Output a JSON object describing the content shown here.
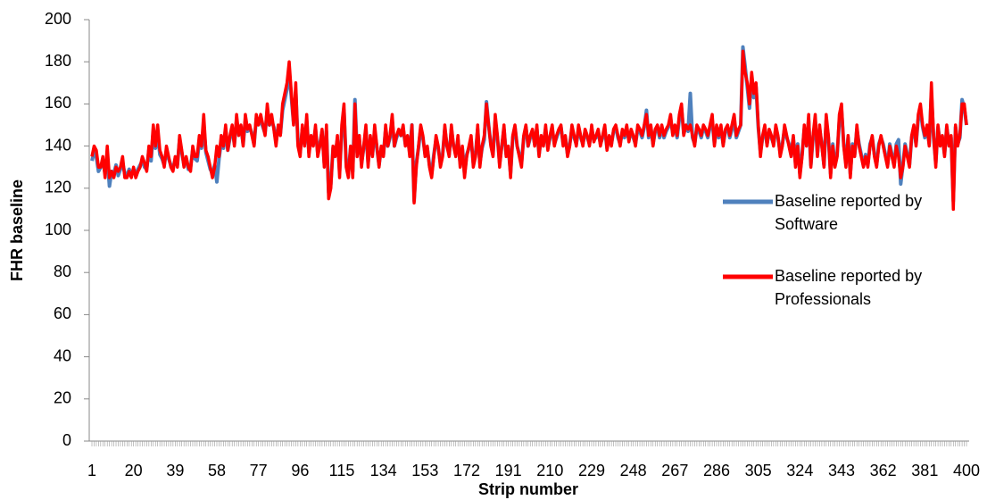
{
  "chart_data": {
    "type": "line",
    "y_label": "FHR baseline",
    "x_label": "Strip number",
    "xlim": [
      1,
      400
    ],
    "ylim": [
      0,
      200
    ],
    "yticks": [
      0,
      20,
      40,
      60,
      80,
      100,
      120,
      140,
      160,
      180,
      200
    ],
    "xticks": [
      1,
      20,
      39,
      58,
      77,
      96,
      115,
      134,
      153,
      172,
      191,
      210,
      229,
      248,
      267,
      286,
      305,
      324,
      343,
      362,
      381,
      400
    ],
    "legend": "right",
    "x": [
      1,
      2,
      3,
      4,
      5,
      6,
      7,
      8,
      9,
      10,
      11,
      12,
      13,
      14,
      15,
      16,
      17,
      18,
      19,
      20,
      21,
      22,
      23,
      24,
      25,
      26,
      27,
      28,
      29,
      30,
      31,
      32,
      33,
      34,
      35,
      36,
      37,
      38,
      39,
      40,
      41,
      42,
      43,
      44,
      45,
      46,
      47,
      48,
      49,
      50,
      51,
      52,
      53,
      54,
      55,
      56,
      57,
      58,
      59,
      60,
      61,
      62,
      63,
      64,
      65,
      66,
      67,
      68,
      69,
      70,
      71,
      72,
      73,
      74,
      75,
      76,
      77,
      78,
      79,
      80,
      81,
      82,
      83,
      84,
      85,
      86,
      87,
      88,
      89,
      90,
      91,
      92,
      93,
      94,
      95,
      96,
      97,
      98,
      99,
      100,
      101,
      102,
      103,
      104,
      105,
      106,
      107,
      108,
      109,
      110,
      111,
      112,
      113,
      114,
      115,
      116,
      117,
      118,
      119,
      120,
      121,
      122,
      123,
      124,
      125,
      126,
      127,
      128,
      129,
      130,
      131,
      132,
      133,
      134,
      135,
      136,
      137,
      138,
      139,
      140,
      141,
      142,
      143,
      144,
      145,
      146,
      147,
      148,
      149,
      150,
      151,
      152,
      153,
      154,
      155,
      156,
      157,
      158,
      159,
      160,
      161,
      162,
      163,
      164,
      165,
      166,
      167,
      168,
      169,
      170,
      171,
      172,
      173,
      174,
      175,
      176,
      177,
      178,
      179,
      180,
      181,
      182,
      183,
      184,
      185,
      186,
      187,
      188,
      189,
      190,
      191,
      192,
      193,
      194,
      195,
      196,
      197,
      198,
      199,
      200,
      201,
      202,
      203,
      204,
      205,
      206,
      207,
      208,
      209,
      210,
      211,
      212,
      213,
      214,
      215,
      216,
      217,
      218,
      219,
      220,
      221,
      222,
      223,
      224,
      225,
      226,
      227,
      228,
      229,
      230,
      231,
      232,
      233,
      234,
      235,
      236,
      237,
      238,
      239,
      240,
      241,
      242,
      243,
      244,
      245,
      246,
      247,
      248,
      249,
      250,
      251,
      252,
      253,
      254,
      255,
      256,
      257,
      258,
      259,
      260,
      261,
      262,
      263,
      264,
      265,
      266,
      267,
      268,
      269,
      270,
      271,
      272,
      273,
      274,
      275,
      276,
      277,
      278,
      279,
      280,
      281,
      282,
      283,
      284,
      285,
      286,
      287,
      288,
      289,
      290,
      291,
      292,
      293,
      294,
      295,
      296,
      297,
      298,
      299,
      300,
      301,
      302,
      303,
      304,
      305,
      306,
      307,
      308,
      309,
      310,
      311,
      312,
      313,
      314,
      315,
      316,
      317,
      318,
      319,
      320,
      321,
      322,
      323,
      324,
      325,
      326,
      327,
      328,
      329,
      330,
      331,
      332,
      333,
      334,
      335,
      336,
      337,
      338,
      339,
      340,
      341,
      342,
      343,
      344,
      345,
      346,
      347,
      348,
      349,
      350,
      351,
      352,
      353,
      354,
      355,
      356,
      357,
      358,
      359,
      360,
      361,
      362,
      363,
      364,
      365,
      366,
      367,
      368,
      369,
      370,
      371,
      372,
      373,
      374,
      375,
      376,
      377,
      378,
      379,
      380,
      381,
      382,
      383,
      384,
      385,
      386,
      387,
      388,
      389,
      390,
      391,
      392,
      393,
      394,
      395,
      396,
      397,
      398,
      399,
      400
    ],
    "series": [
      {
        "name": "Baseline reported by Software",
        "color": "#4f81bd",
        "values": [
          133,
          137,
          135,
          128,
          130,
          133,
          127,
          135,
          121,
          128,
          127,
          131,
          126,
          129,
          132,
          127,
          126,
          129,
          127,
          128,
          127,
          129,
          131,
          133,
          130,
          129,
          138,
          133,
          147,
          139,
          146,
          136,
          134,
          131,
          138,
          134,
          131,
          129,
          134,
          131,
          143,
          137,
          131,
          134,
          129,
          130,
          138,
          134,
          133,
          142,
          139,
          150,
          137,
          133,
          129,
          127,
          131,
          123,
          134,
          142,
          139,
          148,
          138,
          144,
          148,
          141,
          152,
          146,
          149,
          141,
          152,
          147,
          149,
          146,
          141,
          153,
          151,
          152,
          149,
          146,
          157,
          150,
          152,
          149,
          142,
          149,
          146,
          157,
          162,
          167,
          176,
          163,
          151,
          166,
          142,
          137,
          148,
          141,
          152,
          137,
          144,
          141,
          148,
          137,
          141,
          147,
          132,
          147,
          118,
          122,
          139,
          136,
          143,
          128,
          147,
          157,
          132,
          127,
          139,
          128,
          162,
          137,
          143,
          132,
          139,
          148,
          132,
          143,
          136,
          147,
          139,
          131,
          139,
          136,
          148,
          140,
          144,
          152,
          140,
          144,
          147,
          145,
          148,
          141,
          144,
          137,
          150,
          114,
          132,
          139,
          148,
          144,
          136,
          139,
          131,
          127,
          136,
          143,
          139,
          132,
          136,
          148,
          140,
          136,
          148,
          140,
          137,
          143,
          132,
          139,
          127,
          136,
          139,
          143,
          132,
          136,
          148,
          132,
          139,
          143,
          161,
          150,
          141,
          136,
          152,
          144,
          132,
          140,
          148,
          136,
          139,
          127,
          144,
          149,
          140,
          136,
          132,
          144,
          149,
          140,
          144,
          147,
          141,
          148,
          136,
          144,
          141,
          148,
          139,
          144,
          148,
          141,
          144,
          147,
          149,
          141,
          144,
          136,
          141,
          148,
          144,
          141,
          148,
          144,
          141,
          147,
          144,
          141,
          148,
          143,
          144,
          147,
          141,
          144,
          148,
          139,
          144,
          141,
          147,
          149,
          144,
          141,
          147,
          144,
          148,
          143,
          147,
          144,
          141,
          148,
          147,
          144,
          149,
          157,
          144,
          149,
          141,
          147,
          149,
          144,
          149,
          144,
          147,
          149,
          153,
          146,
          149,
          144,
          153,
          158,
          146,
          149,
          147,
          165,
          144,
          141,
          149,
          147,
          144,
          149,
          147,
          144,
          149,
          152,
          141,
          149,
          144,
          148,
          141,
          147,
          149,
          144,
          148,
          152,
          144,
          147,
          150,
          187,
          178,
          168,
          158,
          172,
          163,
          168,
          149,
          137,
          144,
          148,
          141,
          147,
          144,
          141,
          148,
          144,
          137,
          141,
          148,
          144,
          141,
          136,
          144,
          132,
          141,
          127,
          136,
          148,
          141,
          152,
          131,
          144,
          152,
          136,
          148,
          141,
          131,
          152,
          144,
          127,
          141,
          131,
          136,
          152,
          157,
          141,
          132,
          144,
          127,
          141,
          136,
          148,
          141,
          136,
          131,
          136,
          131,
          141,
          144,
          136,
          131,
          141,
          144,
          141,
          136,
          131,
          141,
          136,
          131,
          141,
          143,
          122,
          131,
          141,
          136,
          131,
          144,
          149,
          141,
          153,
          157,
          149,
          144,
          149,
          141,
          165,
          144,
          132,
          149,
          141,
          144,
          136,
          149,
          141,
          144,
          114,
          149,
          141,
          144,
          162,
          158,
          150
        ]
      },
      {
        "name": "Baseline reported by Professionals",
        "color": "#ff0000",
        "values": [
          135,
          140,
          138,
          130,
          130,
          135,
          125,
          140,
          125,
          128,
          125,
          130,
          128,
          130,
          135,
          125,
          125,
          128,
          125,
          130,
          125,
          128,
          130,
          135,
          132,
          128,
          140,
          135,
          150,
          140,
          150,
          138,
          135,
          130,
          140,
          135,
          130,
          128,
          135,
          130,
          145,
          138,
          130,
          135,
          130,
          128,
          140,
          135,
          135,
          145,
          140,
          155,
          138,
          135,
          130,
          125,
          130,
          140,
          135,
          145,
          140,
          150,
          138,
          145,
          150,
          140,
          155,
          145,
          150,
          140,
          155,
          148,
          150,
          145,
          140,
          155,
          150,
          155,
          150,
          145,
          160,
          150,
          155,
          148,
          140,
          150,
          145,
          160,
          165,
          170,
          180,
          165,
          150,
          170,
          140,
          135,
          150,
          140,
          155,
          135,
          145,
          140,
          150,
          135,
          140,
          148,
          130,
          150,
          115,
          120,
          140,
          135,
          145,
          125,
          150,
          160,
          130,
          125,
          140,
          125,
          160,
          135,
          145,
          130,
          140,
          150,
          130,
          145,
          135,
          150,
          140,
          130,
          140,
          135,
          150,
          140,
          145,
          155,
          140,
          145,
          148,
          145,
          150,
          140,
          145,
          135,
          150,
          113,
          130,
          140,
          150,
          145,
          135,
          140,
          130,
          125,
          135,
          145,
          140,
          130,
          135,
          150,
          140,
          135,
          150,
          140,
          135,
          145,
          130,
          140,
          125,
          135,
          140,
          145,
          130,
          135,
          150,
          130,
          140,
          145,
          160,
          150,
          140,
          135,
          155,
          145,
          130,
          140,
          150,
          135,
          140,
          125,
          145,
          150,
          140,
          135,
          130,
          145,
          150,
          140,
          145,
          148,
          140,
          150,
          135,
          145,
          140,
          150,
          138,
          145,
          150,
          140,
          145,
          148,
          150,
          140,
          145,
          135,
          140,
          150,
          145,
          140,
          150,
          145,
          140,
          148,
          145,
          140,
          150,
          142,
          145,
          148,
          140,
          145,
          150,
          138,
          145,
          140,
          148,
          150,
          145,
          140,
          148,
          145,
          150,
          142,
          148,
          145,
          140,
          150,
          148,
          145,
          150,
          155,
          145,
          150,
          140,
          148,
          150,
          145,
          150,
          145,
          148,
          150,
          155,
          145,
          150,
          145,
          155,
          160,
          145,
          150,
          148,
          150,
          145,
          140,
          150,
          148,
          145,
          150,
          148,
          145,
          150,
          155,
          140,
          150,
          145,
          150,
          140,
          148,
          150,
          145,
          150,
          155,
          145,
          148,
          150,
          185,
          175,
          170,
          160,
          175,
          165,
          170,
          150,
          135,
          145,
          150,
          140,
          148,
          145,
          140,
          150,
          145,
          135,
          140,
          150,
          145,
          140,
          135,
          145,
          130,
          140,
          125,
          135,
          150,
          140,
          155,
          130,
          145,
          155,
          135,
          150,
          140,
          130,
          155,
          145,
          125,
          140,
          130,
          135,
          155,
          160,
          140,
          130,
          145,
          125,
          140,
          135,
          150,
          140,
          135,
          130,
          135,
          130,
          140,
          145,
          135,
          130,
          140,
          145,
          140,
          135,
          130,
          140,
          135,
          130,
          140,
          135,
          125,
          130,
          140,
          135,
          130,
          145,
          150,
          140,
          155,
          160,
          150,
          145,
          150,
          140,
          170,
          145,
          130,
          150,
          140,
          145,
          135,
          150,
          140,
          145,
          110,
          150,
          140,
          145,
          160,
          160,
          150
        ]
      }
    ]
  }
}
